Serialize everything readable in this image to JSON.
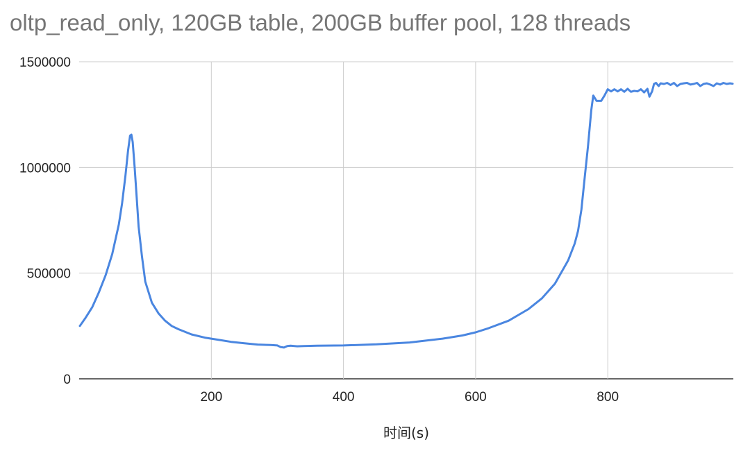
{
  "chart_data": {
    "type": "line",
    "title": "oltp_read_only, 120GB table, 200GB buffer pool, 128 threads",
    "xlabel": "时间(s)",
    "ylabel": "",
    "xlim": [
      0,
      990
    ],
    "ylim": [
      0,
      1500000
    ],
    "x_ticks": [
      200,
      400,
      600,
      800
    ],
    "y_ticks": [
      0,
      500000,
      1000000,
      1500000
    ],
    "x_tick_labels": [
      "200",
      "400",
      "600",
      "800"
    ],
    "y_tick_labels": [
      "0",
      "500000",
      "1000000",
      "1500000"
    ],
    "grid": true,
    "legend": "none",
    "colors": {
      "line": "#4a86e0",
      "title": "#757575",
      "grid": "#cccccc"
    },
    "series": [
      {
        "x": [
          1,
          10,
          20,
          30,
          40,
          50,
          60,
          65,
          70,
          74,
          77,
          79,
          81,
          84,
          87,
          90,
          95,
          100,
          110,
          120,
          130,
          140,
          150,
          170,
          190,
          210,
          230,
          250,
          270,
          290,
          300,
          305,
          310,
          315,
          320,
          330,
          340,
          360,
          400,
          450,
          500,
          550,
          580,
          600,
          620,
          650,
          680,
          700,
          720,
          740,
          750,
          755,
          760,
          765,
          770,
          775,
          778,
          783,
          790,
          795,
          800,
          805,
          810,
          815,
          820,
          825,
          830,
          835,
          840,
          845,
          850,
          855,
          860,
          863,
          867,
          870,
          873,
          877,
          880,
          885,
          890,
          895,
          900,
          905,
          910,
          915,
          920,
          925,
          930,
          935,
          940,
          945,
          950,
          955,
          960,
          965,
          970,
          975,
          980,
          985,
          989
        ],
        "y": [
          250000,
          290000,
          340000,
          410000,
          490000,
          590000,
          730000,
          830000,
          960000,
          1080000,
          1150000,
          1155000,
          1120000,
          1000000,
          860000,
          720000,
          580000,
          460000,
          360000,
          310000,
          275000,
          250000,
          235000,
          210000,
          195000,
          185000,
          175000,
          168000,
          162000,
          160000,
          158000,
          150000,
          148000,
          155000,
          157000,
          154000,
          155000,
          157000,
          158000,
          163000,
          172000,
          190000,
          205000,
          220000,
          240000,
          275000,
          330000,
          380000,
          450000,
          560000,
          640000,
          700000,
          800000,
          950000,
          1100000,
          1270000,
          1340000,
          1315000,
          1315000,
          1340000,
          1370000,
          1360000,
          1370000,
          1360000,
          1370000,
          1358000,
          1372000,
          1358000,
          1362000,
          1360000,
          1370000,
          1355000,
          1372000,
          1335000,
          1360000,
          1395000,
          1400000,
          1385000,
          1398000,
          1395000,
          1400000,
          1390000,
          1400000,
          1385000,
          1395000,
          1398000,
          1400000,
          1392000,
          1395000,
          1400000,
          1385000,
          1395000,
          1398000,
          1392000,
          1385000,
          1398000,
          1392000,
          1400000,
          1395000,
          1398000,
          1396000
        ]
      }
    ]
  }
}
